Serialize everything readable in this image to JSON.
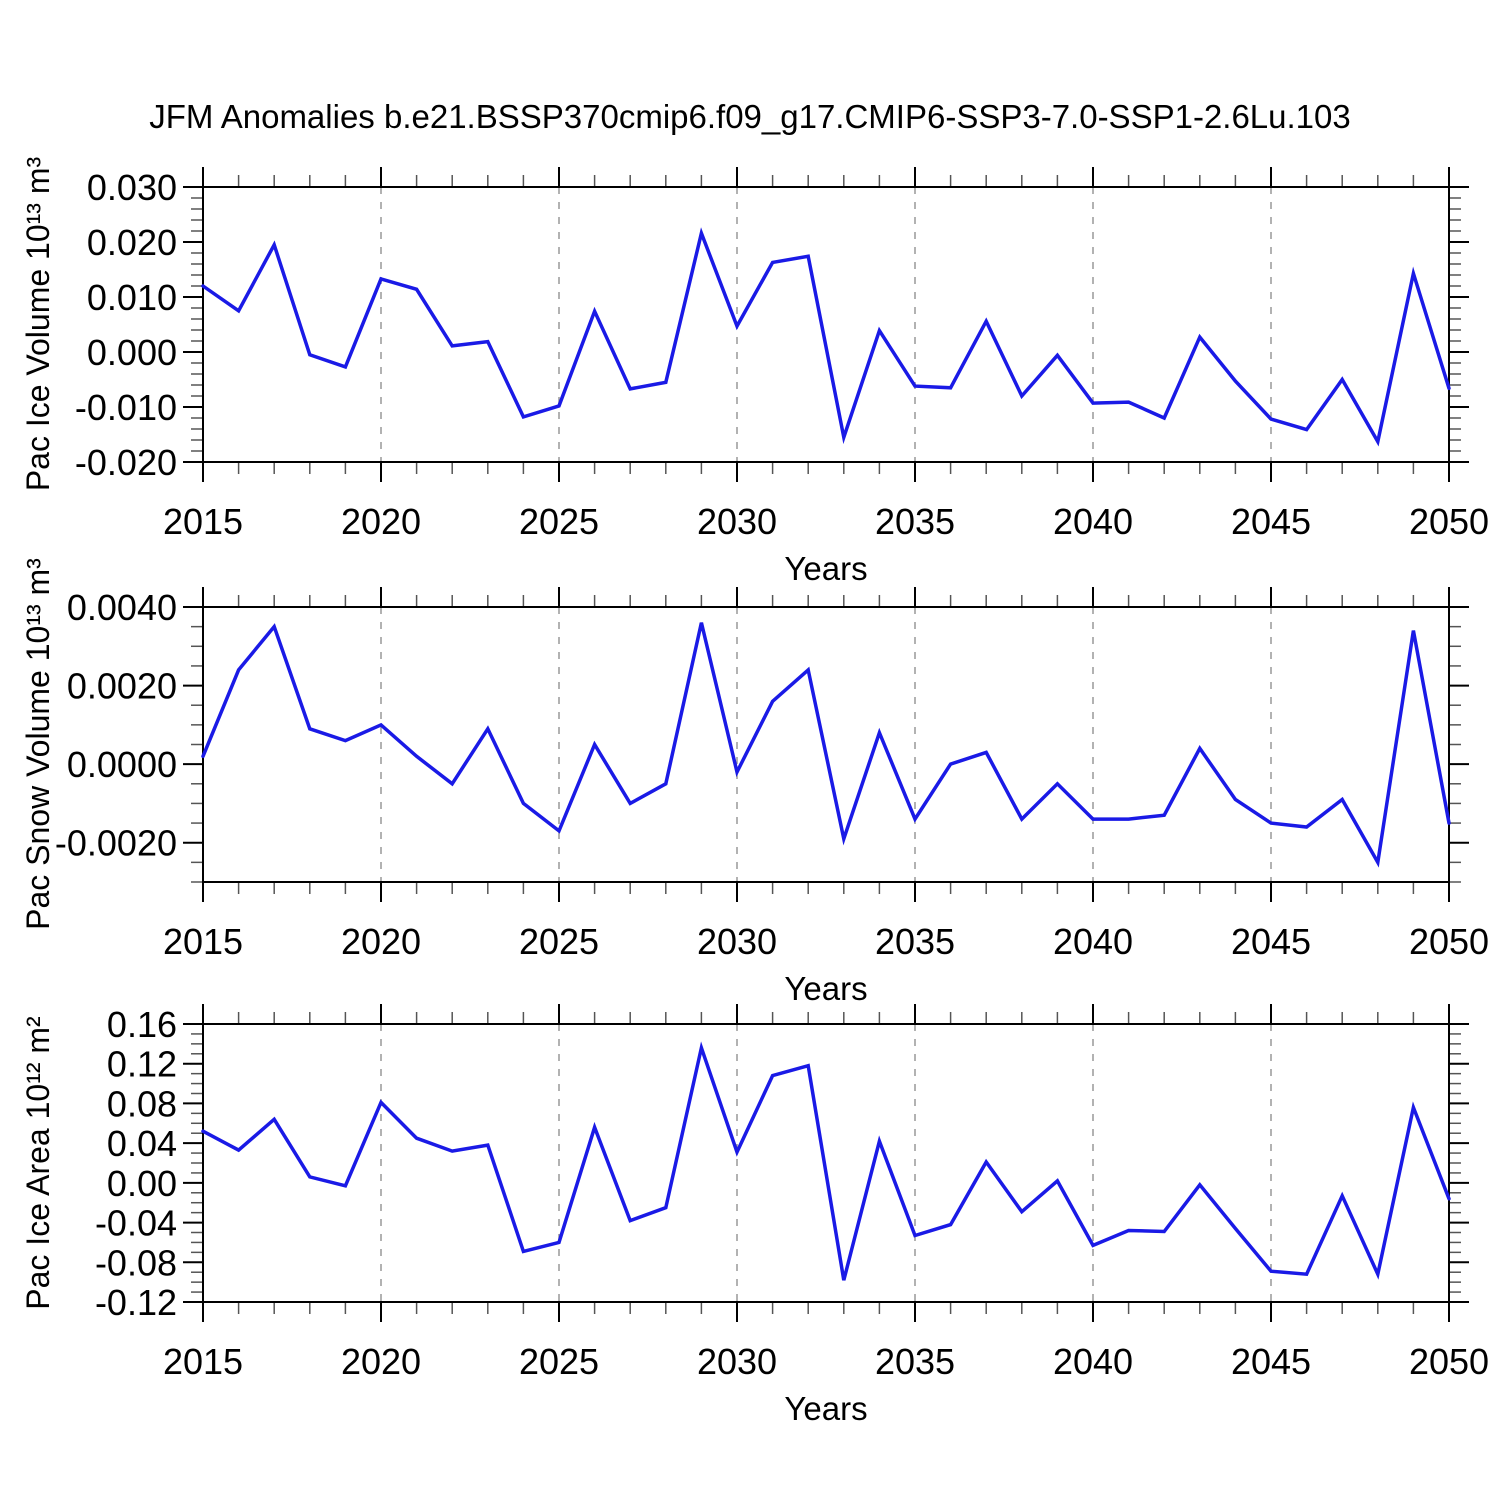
{
  "title": "JFM Anomalies b.e21.BSSP370cmip6.f09_g17.CMIP6-SSP3-7.0-SSP1-2.6Lu.103",
  "colors": {
    "line": "#1a1ae6",
    "axis": "#000000",
    "minor_tick": "#555555",
    "grid": "#999999",
    "text": "#000000",
    "background": "#ffffff"
  },
  "x_axis": {
    "label": "Years",
    "start": 2015,
    "end": 2050,
    "major_ticks": [
      2015,
      2020,
      2025,
      2030,
      2035,
      2040,
      2045,
      2050
    ],
    "grid_years": [
      2020,
      2025,
      2030,
      2035,
      2040,
      2045
    ]
  },
  "chart_data": [
    {
      "type": "line",
      "name": "pac-ice-volume",
      "ylabel": "Pac Ice Volume 10¹³ m³",
      "xlabel": "Years",
      "legend": "none",
      "grid": "vertical-dashed",
      "ylim": [
        -0.02,
        0.03
      ],
      "ytick_values": [
        0.03,
        0.02,
        0.01,
        0.0,
        -0.01,
        -0.02
      ],
      "ytick_labels": [
        "0.030",
        "0.020",
        "0.010",
        "0.000",
        "-0.010",
        "-0.020"
      ],
      "minor_step": 0.002,
      "x": [
        2015,
        2016,
        2017,
        2018,
        2019,
        2020,
        2021,
        2022,
        2023,
        2024,
        2025,
        2026,
        2027,
        2028,
        2029,
        2030,
        2031,
        2032,
        2033,
        2034,
        2035,
        2036,
        2037,
        2038,
        2039,
        2040,
        2041,
        2042,
        2043,
        2044,
        2045,
        2046,
        2047,
        2048,
        2049,
        2050
      ],
      "values": [
        0.012,
        0.0075,
        0.0195,
        -0.0005,
        -0.0027,
        0.0133,
        0.0114,
        0.0011,
        0.0019,
        -0.0118,
        -0.0098,
        0.0074,
        -0.0067,
        -0.0055,
        0.0216,
        0.0047,
        0.0163,
        0.0174,
        -0.0155,
        0.0039,
        -0.0062,
        -0.0065,
        0.0056,
        -0.008,
        -0.0006,
        -0.0093,
        -0.0091,
        -0.012,
        0.0027,
        -0.0053,
        -0.0122,
        -0.0141,
        -0.005,
        -0.0163,
        0.0143,
        -0.0066
      ]
    },
    {
      "type": "line",
      "name": "pac-snow-volume",
      "ylabel": "Pac Snow Volume 10¹³ m³",
      "xlabel": "Years",
      "legend": "none",
      "grid": "vertical-dashed",
      "ylim": [
        -0.003,
        0.004
      ],
      "ytick_values": [
        0.004,
        0.002,
        0.0,
        -0.002
      ],
      "ytick_labels": [
        "0.0040",
        "0.0020",
        "0.0000",
        "-0.0020"
      ],
      "minor_step": 0.0005,
      "x": [
        2015,
        2016,
        2017,
        2018,
        2019,
        2020,
        2021,
        2022,
        2023,
        2024,
        2025,
        2026,
        2027,
        2028,
        2029,
        2030,
        2031,
        2032,
        2033,
        2034,
        2035,
        2036,
        2037,
        2038,
        2039,
        2040,
        2041,
        2042,
        2043,
        2044,
        2045,
        2046,
        2047,
        2048,
        2049,
        2050
      ],
      "values": [
        0.0002,
        0.0024,
        0.0035,
        0.0009,
        0.0006,
        0.001,
        0.0002,
        -0.0005,
        0.0009,
        -0.001,
        -0.0017,
        0.0005,
        -0.001,
        -0.0005,
        0.0036,
        -0.0002,
        0.0016,
        0.0024,
        -0.0019,
        0.0008,
        -0.0014,
        0.0,
        0.0003,
        -0.0014,
        -0.0005,
        -0.0014,
        -0.0014,
        -0.0013,
        0.0004,
        -0.0009,
        -0.0015,
        -0.0016,
        -0.0009,
        -0.0025,
        0.0034,
        -0.0015
      ]
    },
    {
      "type": "line",
      "name": "pac-ice-area",
      "ylabel": "Pac Ice Area 10¹² m²",
      "xlabel": "Years",
      "legend": "none",
      "grid": "vertical-dashed",
      "ylim": [
        -0.12,
        0.16
      ],
      "ytick_values": [
        0.16,
        0.12,
        0.08,
        0.04,
        0.0,
        -0.04,
        -0.08,
        -0.12
      ],
      "ytick_labels": [
        "0.16",
        "0.12",
        "0.08",
        "0.04",
        "0.00",
        "-0.04",
        "-0.08",
        "-0.12"
      ],
      "minor_step": 0.01,
      "x": [
        2015,
        2016,
        2017,
        2018,
        2019,
        2020,
        2021,
        2022,
        2023,
        2024,
        2025,
        2026,
        2027,
        2028,
        2029,
        2030,
        2031,
        2032,
        2033,
        2034,
        2035,
        2036,
        2037,
        2038,
        2039,
        2040,
        2041,
        2042,
        2043,
        2044,
        2045,
        2046,
        2047,
        2048,
        2049,
        2050
      ],
      "values": [
        0.052,
        0.033,
        0.064,
        0.006,
        -0.003,
        0.081,
        0.045,
        0.032,
        0.038,
        -0.069,
        -0.06,
        0.056,
        -0.038,
        -0.025,
        0.136,
        0.031,
        0.108,
        0.118,
        -0.098,
        0.042,
        -0.053,
        -0.042,
        0.021,
        -0.029,
        0.002,
        -0.063,
        -0.048,
        -0.049,
        -0.002,
        -0.046,
        -0.089,
        -0.092,
        -0.013,
        -0.092,
        0.076,
        -0.016
      ]
    }
  ]
}
